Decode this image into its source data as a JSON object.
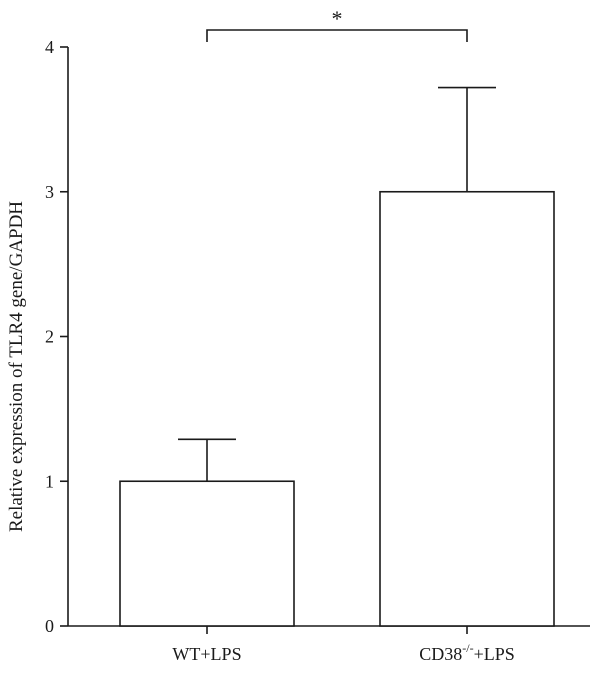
{
  "chart_data": {
    "type": "bar",
    "categories": [
      {
        "base": "WT+LPS",
        "sup": "",
        "suffix": ""
      },
      {
        "base": "CD38",
        "sup": "-/-",
        "suffix": "+LPS"
      }
    ],
    "values": [
      1.0,
      3.0
    ],
    "error_upper": [
      1.29,
      3.72
    ],
    "patterns": [
      "none",
      "horizontal-lines"
    ],
    "ylabel": "Relative expression of TLR4 gene/GAPDH",
    "xlabel": "",
    "ylim": [
      0,
      4
    ],
    "yticks": [
      0,
      1,
      2,
      3,
      4
    ],
    "significance": {
      "label": "*",
      "between": [
        0,
        1
      ]
    },
    "grid": false
  }
}
